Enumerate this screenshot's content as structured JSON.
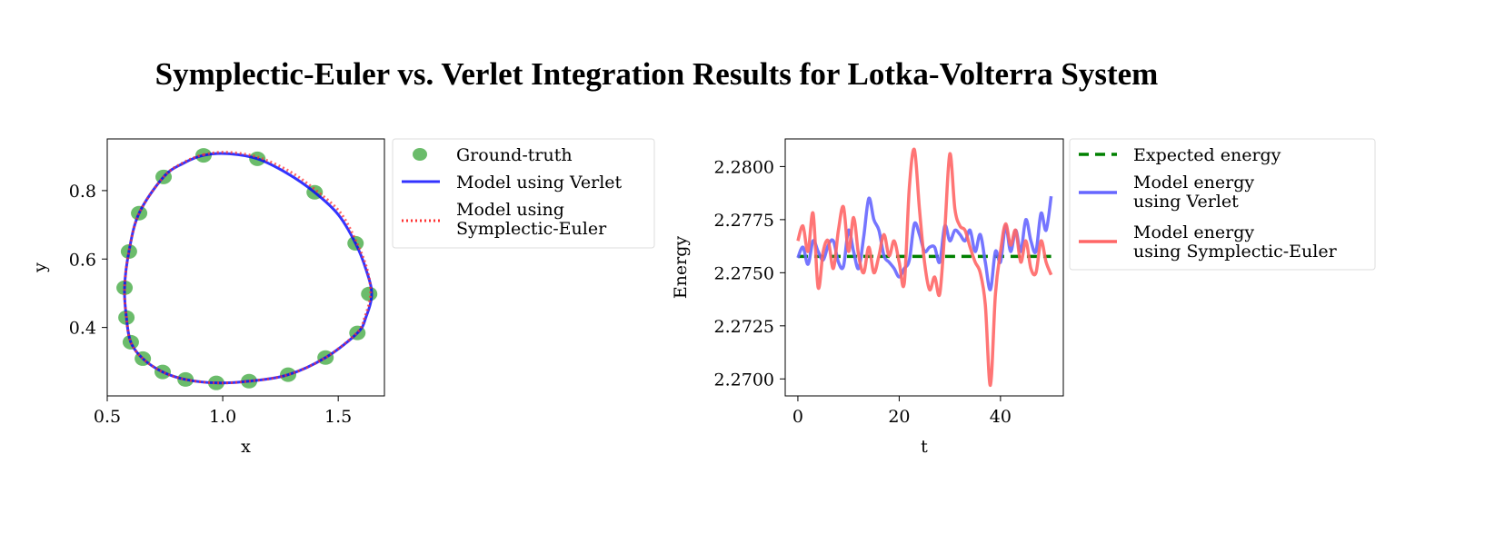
{
  "title": "Symplectic-Euler vs. Verlet Integration Results for Lotka-Volterra System",
  "chart_data": [
    {
      "type": "line",
      "xlabel": "x",
      "ylabel": "y",
      "xlim": [
        0.5,
        1.7
      ],
      "ylim": [
        0.2,
        0.951
      ],
      "xticks": [
        0.5,
        1.0,
        1.5
      ],
      "xtick_labels": [
        "0.5",
        "1.0",
        "1.5"
      ],
      "yticks": [
        0.4,
        0.6,
        0.8
      ],
      "ytick_labels": [
        "0.4",
        "0.6",
        "0.8"
      ],
      "grid": false,
      "legend_placement": "outside-right",
      "series": [
        {
          "name": "Ground-truth",
          "style": "scatter",
          "color": "#2ca02c",
          "x": [
            0.917,
            1.15,
            1.398,
            1.575,
            1.634,
            1.583,
            1.445,
            1.283,
            1.114,
            0.972,
            0.839,
            0.74,
            0.654,
            0.602,
            0.583,
            0.575,
            0.594,
            0.638,
            0.744
          ],
          "y": [
            0.903,
            0.893,
            0.795,
            0.646,
            0.498,
            0.384,
            0.312,
            0.262,
            0.243,
            0.238,
            0.248,
            0.27,
            0.309,
            0.357,
            0.429,
            0.516,
            0.622,
            0.734,
            0.84
          ]
        },
        {
          "name": "Model using Verlet",
          "style": "solid",
          "color": "#0000ff",
          "x": [
            0.917,
            1.02,
            1.15,
            1.28,
            1.398,
            1.5,
            1.575,
            1.62,
            1.645,
            1.62,
            1.583,
            1.445,
            1.283,
            1.114,
            0.972,
            0.839,
            0.74,
            0.654,
            0.602,
            0.583,
            0.575,
            0.594,
            0.638,
            0.744,
            0.83
          ],
          "y": [
            0.903,
            0.908,
            0.893,
            0.85,
            0.795,
            0.73,
            0.646,
            0.57,
            0.498,
            0.43,
            0.384,
            0.312,
            0.262,
            0.243,
            0.238,
            0.248,
            0.27,
            0.309,
            0.357,
            0.429,
            0.516,
            0.622,
            0.734,
            0.84,
            0.88
          ]
        },
        {
          "name": "Model using\nSymplectic-Euler",
          "style": "dotted",
          "color": "#ff3333",
          "x": [
            0.917,
            1.02,
            1.15,
            1.29,
            1.405,
            1.51,
            1.58,
            1.625,
            1.64,
            1.615,
            1.58,
            1.445,
            1.283,
            1.114,
            0.972,
            0.839,
            0.74,
            0.654,
            0.602,
            0.583,
            0.575,
            0.594,
            0.638,
            0.744,
            0.83
          ],
          "y": [
            0.905,
            0.912,
            0.898,
            0.856,
            0.8,
            0.735,
            0.648,
            0.57,
            0.498,
            0.43,
            0.384,
            0.312,
            0.262,
            0.243,
            0.238,
            0.248,
            0.27,
            0.309,
            0.357,
            0.429,
            0.516,
            0.622,
            0.734,
            0.84,
            0.882
          ]
        }
      ]
    },
    {
      "type": "line",
      "xlabel": "t",
      "ylabel": "Energy",
      "xlim": [
        -2.5,
        52.4
      ],
      "ylim": [
        2.2692,
        2.2813
      ],
      "xticks": [
        0,
        20,
        40
      ],
      "xtick_labels": [
        "0",
        "20",
        "40"
      ],
      "yticks": [
        2.27,
        2.2725,
        2.275,
        2.2775,
        2.28
      ],
      "ytick_labels": [
        "2.2700",
        "2.2725",
        "2.2750",
        "2.2775",
        "2.2800"
      ],
      "grid": false,
      "legend_placement": "outside-right",
      "t": [
        0,
        1,
        2,
        3,
        4,
        5,
        6,
        7,
        8,
        9,
        10,
        11,
        12,
        13,
        14,
        15,
        16,
        17,
        18,
        19,
        20,
        21,
        22,
        23,
        24,
        25,
        26,
        27,
        28,
        29,
        30,
        31,
        32,
        33,
        34,
        35,
        36,
        37,
        38,
        39,
        40,
        41,
        42,
        43,
        44,
        45,
        46,
        47,
        48,
        49,
        50
      ],
      "series": [
        {
          "name": "Expected energy",
          "style": "dashed",
          "color": "#008000",
          "constant": 2.27577
        },
        {
          "name": "Model energy\nusing Verlet",
          "style": "solid",
          "color": "#6666ff",
          "values": [
            2.2757,
            2.2762,
            2.2754,
            2.2765,
            2.276,
            2.2756,
            2.2763,
            2.2765,
            2.2755,
            2.2753,
            2.277,
            2.276,
            2.2752,
            2.2767,
            2.2785,
            2.2775,
            2.277,
            2.2758,
            2.2755,
            2.2752,
            2.2748,
            2.2752,
            2.2756,
            2.2773,
            2.2768,
            2.276,
            2.2762,
            2.2762,
            2.2755,
            2.2772,
            2.2765,
            2.277,
            2.2768,
            2.2765,
            2.277,
            2.276,
            2.2768,
            2.2755,
            2.2742,
            2.276,
            2.2755,
            2.2772,
            2.276,
            2.277,
            2.276,
            2.2775,
            2.2765,
            2.276,
            2.2778,
            2.277,
            2.2786
          ]
        },
        {
          "name": "Model energy\nusing Symplectic-Euler",
          "style": "solid",
          "color": "#ff6666",
          "values": [
            2.2765,
            2.2772,
            2.276,
            2.2778,
            2.2743,
            2.276,
            2.2765,
            2.2752,
            2.277,
            2.2781,
            2.276,
            2.2776,
            2.2758,
            2.275,
            2.2762,
            2.275,
            2.2758,
            2.2768,
            2.2758,
            2.2765,
            2.2755,
            2.2745,
            2.279,
            2.2808,
            2.278,
            2.2755,
            2.2742,
            2.2748,
            2.274,
            2.277,
            2.2806,
            2.278,
            2.2772,
            2.277,
            2.2762,
            2.2755,
            2.275,
            2.2735,
            2.2697,
            2.274,
            2.276,
            2.2773,
            2.2763,
            2.277,
            2.2755,
            2.2765,
            2.2752,
            2.275,
            2.2765,
            2.2755,
            2.2749
          ]
        }
      ]
    }
  ]
}
